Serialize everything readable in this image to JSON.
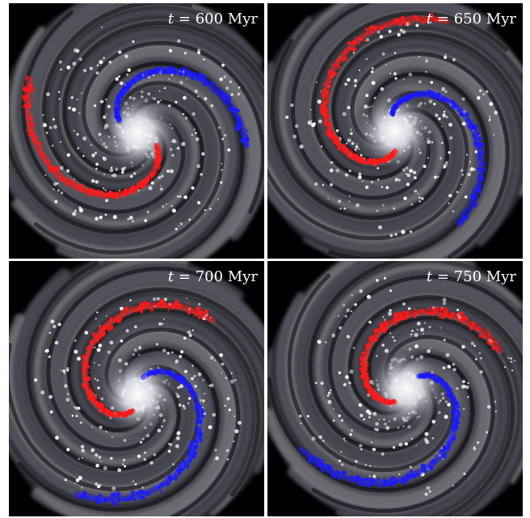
{
  "panels": [
    {
      "t_symbol": "t",
      "equals": " = ",
      "time": "600",
      "unit": "Myr"
    },
    {
      "t_symbol": "t",
      "equals": " = ",
      "time": "650",
      "unit": "Myr"
    },
    {
      "t_symbol": "t",
      "equals": " = ",
      "time": "700",
      "unit": "Myr"
    },
    {
      "t_symbol": "t",
      "equals": " = ",
      "time": "750",
      "unit": "Myr"
    }
  ],
  "colors": {
    "background": "#000000",
    "gas_light": "#e8e8f0",
    "gas_mid": "#6a6a78",
    "arm_red": "#ff1a1a",
    "arm_blue": "#1a1aff"
  }
}
